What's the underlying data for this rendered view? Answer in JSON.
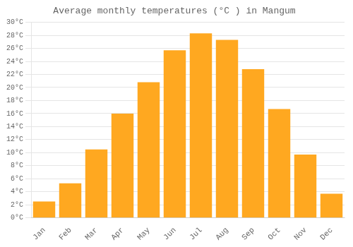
{
  "chart_data": {
    "type": "bar",
    "title": "Average monthly temperatures (°C ) in Mangum",
    "categories": [
      "Jan",
      "Feb",
      "Mar",
      "Apr",
      "May",
      "Jun",
      "Jul",
      "Aug",
      "Sep",
      "Oct",
      "Nov",
      "Dec"
    ],
    "values": [
      2.5,
      5.3,
      10.5,
      16.0,
      20.8,
      25.7,
      28.3,
      27.3,
      22.8,
      16.7,
      9.7,
      3.7
    ],
    "color": "#FFA820",
    "ylim": [
      0,
      30
    ],
    "yticks": [
      {
        "value": 0,
        "label": "0°C"
      },
      {
        "value": 2,
        "label": "2°C"
      },
      {
        "value": 4,
        "label": "4°C"
      },
      {
        "value": 6,
        "label": "6°C"
      },
      {
        "value": 8,
        "label": "8°C"
      },
      {
        "value": 10,
        "label": "10°C"
      },
      {
        "value": 12,
        "label": "12°C"
      },
      {
        "value": 14,
        "label": "14°C"
      },
      {
        "value": 16,
        "label": "16°C"
      },
      {
        "value": 18,
        "label": "18°C"
      },
      {
        "value": 20,
        "label": "20°C"
      },
      {
        "value": 22,
        "label": "22°C"
      },
      {
        "value": 24,
        "label": "24°C"
      },
      {
        "value": 26,
        "label": "26°C"
      },
      {
        "value": 28,
        "label": "28°C"
      },
      {
        "value": 30,
        "label": "30°C"
      }
    ],
    "grid": "y"
  }
}
